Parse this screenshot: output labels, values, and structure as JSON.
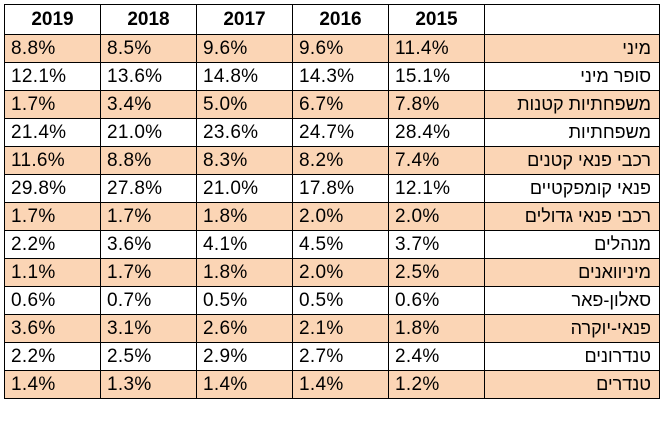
{
  "chart_data": {
    "type": "table",
    "columns": [
      "2019",
      "2018",
      "2017",
      "2016",
      "2015"
    ],
    "band_color": "#fbd5b5",
    "rows": [
      {
        "category": "מיני",
        "values": [
          "8.8%",
          "8.5%",
          "9.6%",
          "9.6%",
          "11.4%"
        ]
      },
      {
        "category": "סופר מיני",
        "values": [
          "12.1%",
          "13.6%",
          "14.8%",
          "14.3%",
          "15.1%"
        ]
      },
      {
        "category": "משפחתיות קטנות",
        "values": [
          "1.7%",
          "3.4%",
          "5.0%",
          "6.7%",
          "7.8%"
        ]
      },
      {
        "category": "משפחתיות",
        "values": [
          "21.4%",
          "21.0%",
          "23.6%",
          "24.7%",
          "28.4%"
        ]
      },
      {
        "category": "רכבי פנאי קטנים",
        "values": [
          "11.6%",
          "8.8%",
          "8.3%",
          "8.2%",
          "7.4%"
        ]
      },
      {
        "category": "פנאי קומפקטיים",
        "values": [
          "29.8%",
          "27.8%",
          "21.0%",
          "17.8%",
          "12.1%"
        ]
      },
      {
        "category": "רכבי פנאי גדולים",
        "values": [
          "1.7%",
          "1.7%",
          "1.8%",
          "2.0%",
          "2.0%"
        ]
      },
      {
        "category": "מנהלים",
        "values": [
          "2.2%",
          "3.6%",
          "4.1%",
          "4.5%",
          "3.7%"
        ]
      },
      {
        "category": "מיניוואנים",
        "values": [
          "1.1%",
          "1.7%",
          "1.8%",
          "2.0%",
          "2.5%"
        ]
      },
      {
        "category": "סאלון-פאר",
        "values": [
          "0.6%",
          "0.7%",
          "0.5%",
          "0.5%",
          "0.6%"
        ]
      },
      {
        "category": "פנאי-יוקרה",
        "values": [
          "3.6%",
          "3.1%",
          "2.6%",
          "2.1%",
          "1.8%"
        ]
      },
      {
        "category": "טנדרונים",
        "values": [
          "2.2%",
          "2.5%",
          "2.9%",
          "2.7%",
          "2.4%"
        ]
      },
      {
        "category": "טנדרים",
        "values": [
          "1.4%",
          "1.3%",
          "1.4%",
          "1.4%",
          "1.2%"
        ]
      }
    ]
  }
}
